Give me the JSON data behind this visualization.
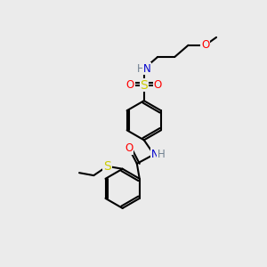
{
  "bg_color": "#ebebeb",
  "atom_colors": {
    "N": "#0000cd",
    "NH": "#0000cd",
    "O": "#ff0000",
    "S": "#cccc00",
    "H": "#708090"
  },
  "bond_color": "#000000",
  "bond_width": 1.5,
  "font_size": 8.5,
  "figsize": [
    3.0,
    3.0
  ],
  "dpi": 100
}
